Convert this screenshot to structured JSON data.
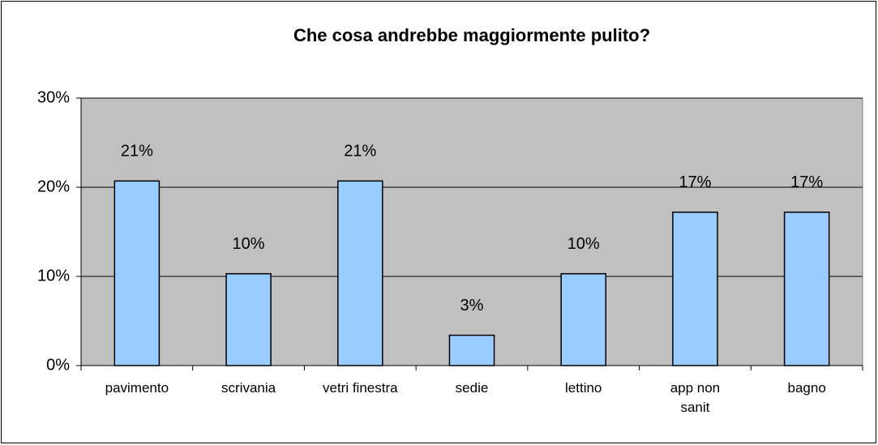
{
  "chart_data": {
    "type": "bar",
    "title": "Che cosa andrebbe maggiormente pulito?",
    "categories": [
      "pavimento",
      "scrivania",
      "vetri finestra",
      "sedie",
      "lettino",
      "app non sanit",
      "bagno"
    ],
    "values": [
      20.7,
      10.3,
      20.7,
      3.4,
      10.3,
      17.2,
      17.2
    ],
    "value_labels": [
      "21%",
      "10%",
      "21%",
      "3%",
      "10%",
      "17%",
      "17%"
    ],
    "color": "#99ccff",
    "ylim": [
      0,
      30
    ],
    "yticks": [
      {
        "value": 0,
        "label": "0%"
      },
      {
        "value": 10,
        "label": "10%"
      },
      {
        "value": 20,
        "label": "20%"
      },
      {
        "value": 30,
        "label": "30%"
      }
    ],
    "grid": true
  }
}
